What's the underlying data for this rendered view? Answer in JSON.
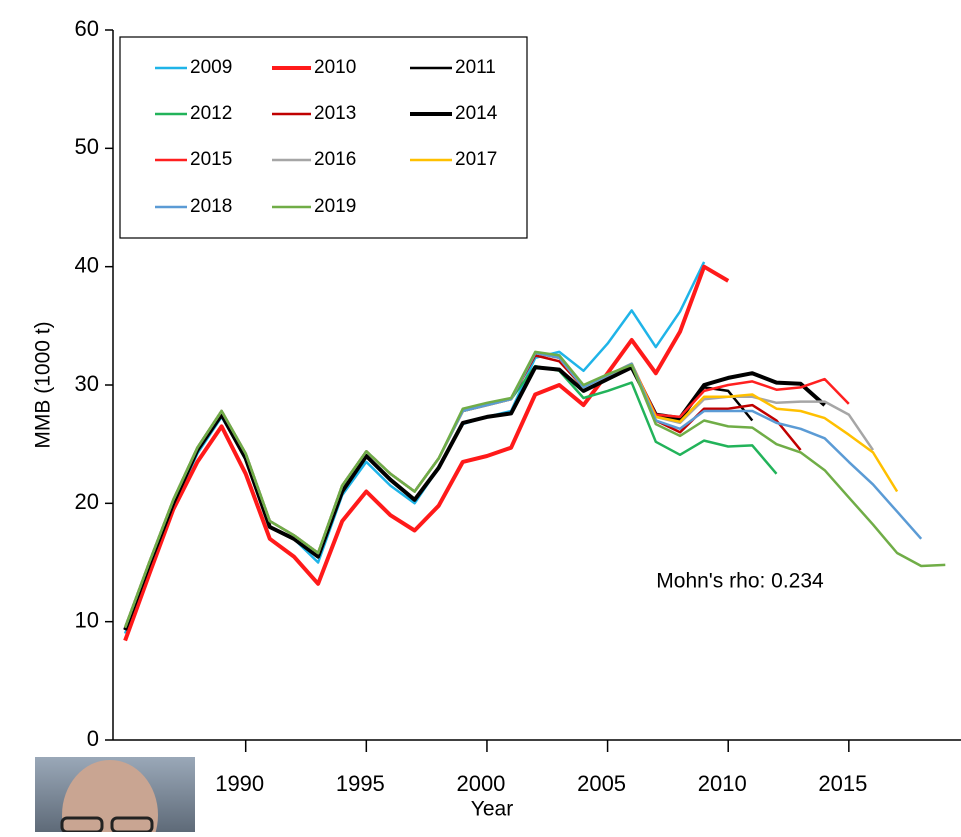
{
  "chart_data": {
    "type": "line",
    "y_label": "MMB (1000 t)",
    "x_label": "Year",
    "annotation": "Mohn's rho: 0.234",
    "xlim": [
      1984.5,
      2019.4
    ],
    "ylim": [
      0,
      60
    ],
    "xticks": [
      1990,
      1995,
      2000,
      2005,
      2010,
      2015
    ],
    "yticks": [
      0,
      10,
      20,
      30,
      40,
      50,
      60
    ],
    "x": [
      1985,
      1986,
      1987,
      1988,
      1989,
      1990,
      1991,
      1992,
      1993,
      1994,
      1995,
      1996,
      1997,
      1998,
      1999,
      2000,
      2001,
      2002,
      2003,
      2004,
      2005,
      2006,
      2007,
      2008,
      2009,
      2010,
      2011,
      2012,
      2013,
      2014,
      2015,
      2016,
      2017,
      2018,
      2019
    ],
    "series": [
      {
        "name": "2009",
        "color": "#1fb4e8",
        "width": 2.5,
        "values": [
          9.0,
          14.5,
          19.8,
          24.2,
          27.3,
          23.8,
          18.0,
          17.0,
          15.0,
          20.7,
          23.5,
          21.5,
          20.0,
          23.0,
          26.7,
          27.3,
          27.8,
          32.3,
          32.8,
          31.2,
          33.5,
          36.3,
          33.2,
          36.2,
          40.4,
          null,
          null,
          null,
          null,
          null,
          null,
          null,
          null,
          null,
          null
        ]
      },
      {
        "name": "2010",
        "color": "#ff1a1a",
        "width": 4,
        "values": [
          8.4,
          14.0,
          19.5,
          23.5,
          26.5,
          22.5,
          17.0,
          15.5,
          13.2,
          18.5,
          21.0,
          19.0,
          17.7,
          19.8,
          23.5,
          24.0,
          24.7,
          29.2,
          30.0,
          28.3,
          31.0,
          33.8,
          31.0,
          34.5,
          40.0,
          38.8,
          null,
          null,
          null,
          null,
          null,
          null,
          null,
          null,
          null
        ]
      },
      {
        "name": "2011",
        "color": "#000000",
        "width": 2.5,
        "values": [
          9.3,
          14.8,
          20.0,
          24.5,
          27.5,
          23.8,
          18.0,
          17.0,
          15.5,
          21.0,
          24.0,
          22.0,
          20.3,
          23.0,
          26.8,
          27.3,
          27.6,
          31.5,
          31.3,
          29.5,
          30.5,
          31.5,
          27.5,
          27.0,
          29.8,
          29.5,
          27.0,
          null,
          null,
          null,
          null,
          null,
          null,
          null,
          null
        ]
      },
      {
        "name": "2012",
        "color": "#22b35a",
        "width": 2.5,
        "values": [
          9.5,
          15.0,
          20.3,
          24.7,
          27.8,
          24.2,
          18.5,
          17.3,
          15.8,
          21.5,
          24.4,
          22.5,
          21.0,
          23.8,
          27.8,
          28.3,
          28.8,
          31.6,
          31.2,
          28.9,
          29.5,
          30.2,
          25.2,
          24.1,
          25.3,
          24.8,
          24.9,
          22.5,
          null,
          null,
          null,
          null,
          null,
          null,
          null
        ]
      },
      {
        "name": "2013",
        "color": "#c00000",
        "width": 2.5,
        "values": [
          9.5,
          15.0,
          20.3,
          24.7,
          27.8,
          24.2,
          18.5,
          17.3,
          15.8,
          21.5,
          24.4,
          22.5,
          21.0,
          23.8,
          27.8,
          28.3,
          28.8,
          32.5,
          32.0,
          29.8,
          30.8,
          31.8,
          27.0,
          26.0,
          28.0,
          28.0,
          28.3,
          27.0,
          24.5,
          null,
          null,
          null,
          null,
          null,
          null
        ]
      },
      {
        "name": "2014",
        "color": "#000000",
        "width": 4,
        "values": [
          9.3,
          14.8,
          20.0,
          24.5,
          27.5,
          23.8,
          18.0,
          17.0,
          15.5,
          21.0,
          24.0,
          22.0,
          20.3,
          23.0,
          26.8,
          27.3,
          27.6,
          31.5,
          31.3,
          29.5,
          30.5,
          31.5,
          27.5,
          27.2,
          30.0,
          30.6,
          31.0,
          30.2,
          30.1,
          28.3,
          null,
          null,
          null,
          null,
          null
        ]
      },
      {
        "name": "2015",
        "color": "#ff2020",
        "width": 2.5,
        "values": [
          9.5,
          15.0,
          20.3,
          24.7,
          27.8,
          24.2,
          18.5,
          17.3,
          15.8,
          21.5,
          24.4,
          22.5,
          21.0,
          23.8,
          27.8,
          28.3,
          28.8,
          32.7,
          32.3,
          29.8,
          30.8,
          31.8,
          27.5,
          27.3,
          29.5,
          30.0,
          30.3,
          29.6,
          29.8,
          30.5,
          28.4,
          null,
          null,
          null,
          null
        ]
      },
      {
        "name": "2016",
        "color": "#a6a6a6",
        "width": 2.5,
        "values": [
          9.5,
          15.0,
          20.3,
          24.7,
          27.8,
          24.2,
          18.5,
          17.3,
          15.8,
          21.5,
          24.4,
          22.5,
          21.0,
          23.8,
          27.8,
          28.3,
          28.8,
          32.7,
          32.3,
          29.8,
          30.8,
          31.8,
          27.3,
          26.8,
          28.8,
          29.0,
          29.0,
          28.5,
          28.6,
          28.6,
          27.5,
          24.5,
          null,
          null,
          null
        ]
      },
      {
        "name": "2017",
        "color": "#ffc000",
        "width": 2.5,
        "values": [
          9.5,
          15.0,
          20.3,
          24.7,
          27.8,
          24.2,
          18.5,
          17.3,
          15.8,
          21.5,
          24.4,
          22.5,
          21.0,
          23.8,
          27.8,
          28.3,
          28.8,
          32.7,
          32.3,
          29.8,
          30.8,
          31.8,
          27.3,
          26.9,
          29.0,
          29.0,
          29.2,
          28.0,
          27.8,
          27.2,
          25.8,
          24.3,
          21.0,
          null,
          null
        ]
      },
      {
        "name": "2018",
        "color": "#5b9bd5",
        "width": 2.5,
        "values": [
          9.5,
          15.0,
          20.3,
          24.7,
          27.8,
          24.2,
          18.5,
          17.3,
          15.8,
          21.5,
          24.4,
          22.5,
          21.0,
          23.8,
          27.8,
          28.3,
          28.8,
          32.7,
          32.3,
          29.8,
          30.8,
          31.8,
          27.0,
          26.3,
          27.8,
          27.8,
          27.8,
          26.8,
          26.3,
          25.5,
          23.5,
          21.6,
          19.3,
          17.0,
          null
        ]
      },
      {
        "name": "2019",
        "color": "#70ad47",
        "width": 2.5,
        "values": [
          9.5,
          15.0,
          20.3,
          24.7,
          27.8,
          24.2,
          18.5,
          17.3,
          15.8,
          21.5,
          24.4,
          22.5,
          21.0,
          23.8,
          28.0,
          28.5,
          28.9,
          32.8,
          32.5,
          30.0,
          30.9,
          31.7,
          26.7,
          25.7,
          27.0,
          26.5,
          26.4,
          25.0,
          24.3,
          22.8,
          20.5,
          18.2,
          15.8,
          14.7,
          14.8
        ]
      }
    ]
  }
}
